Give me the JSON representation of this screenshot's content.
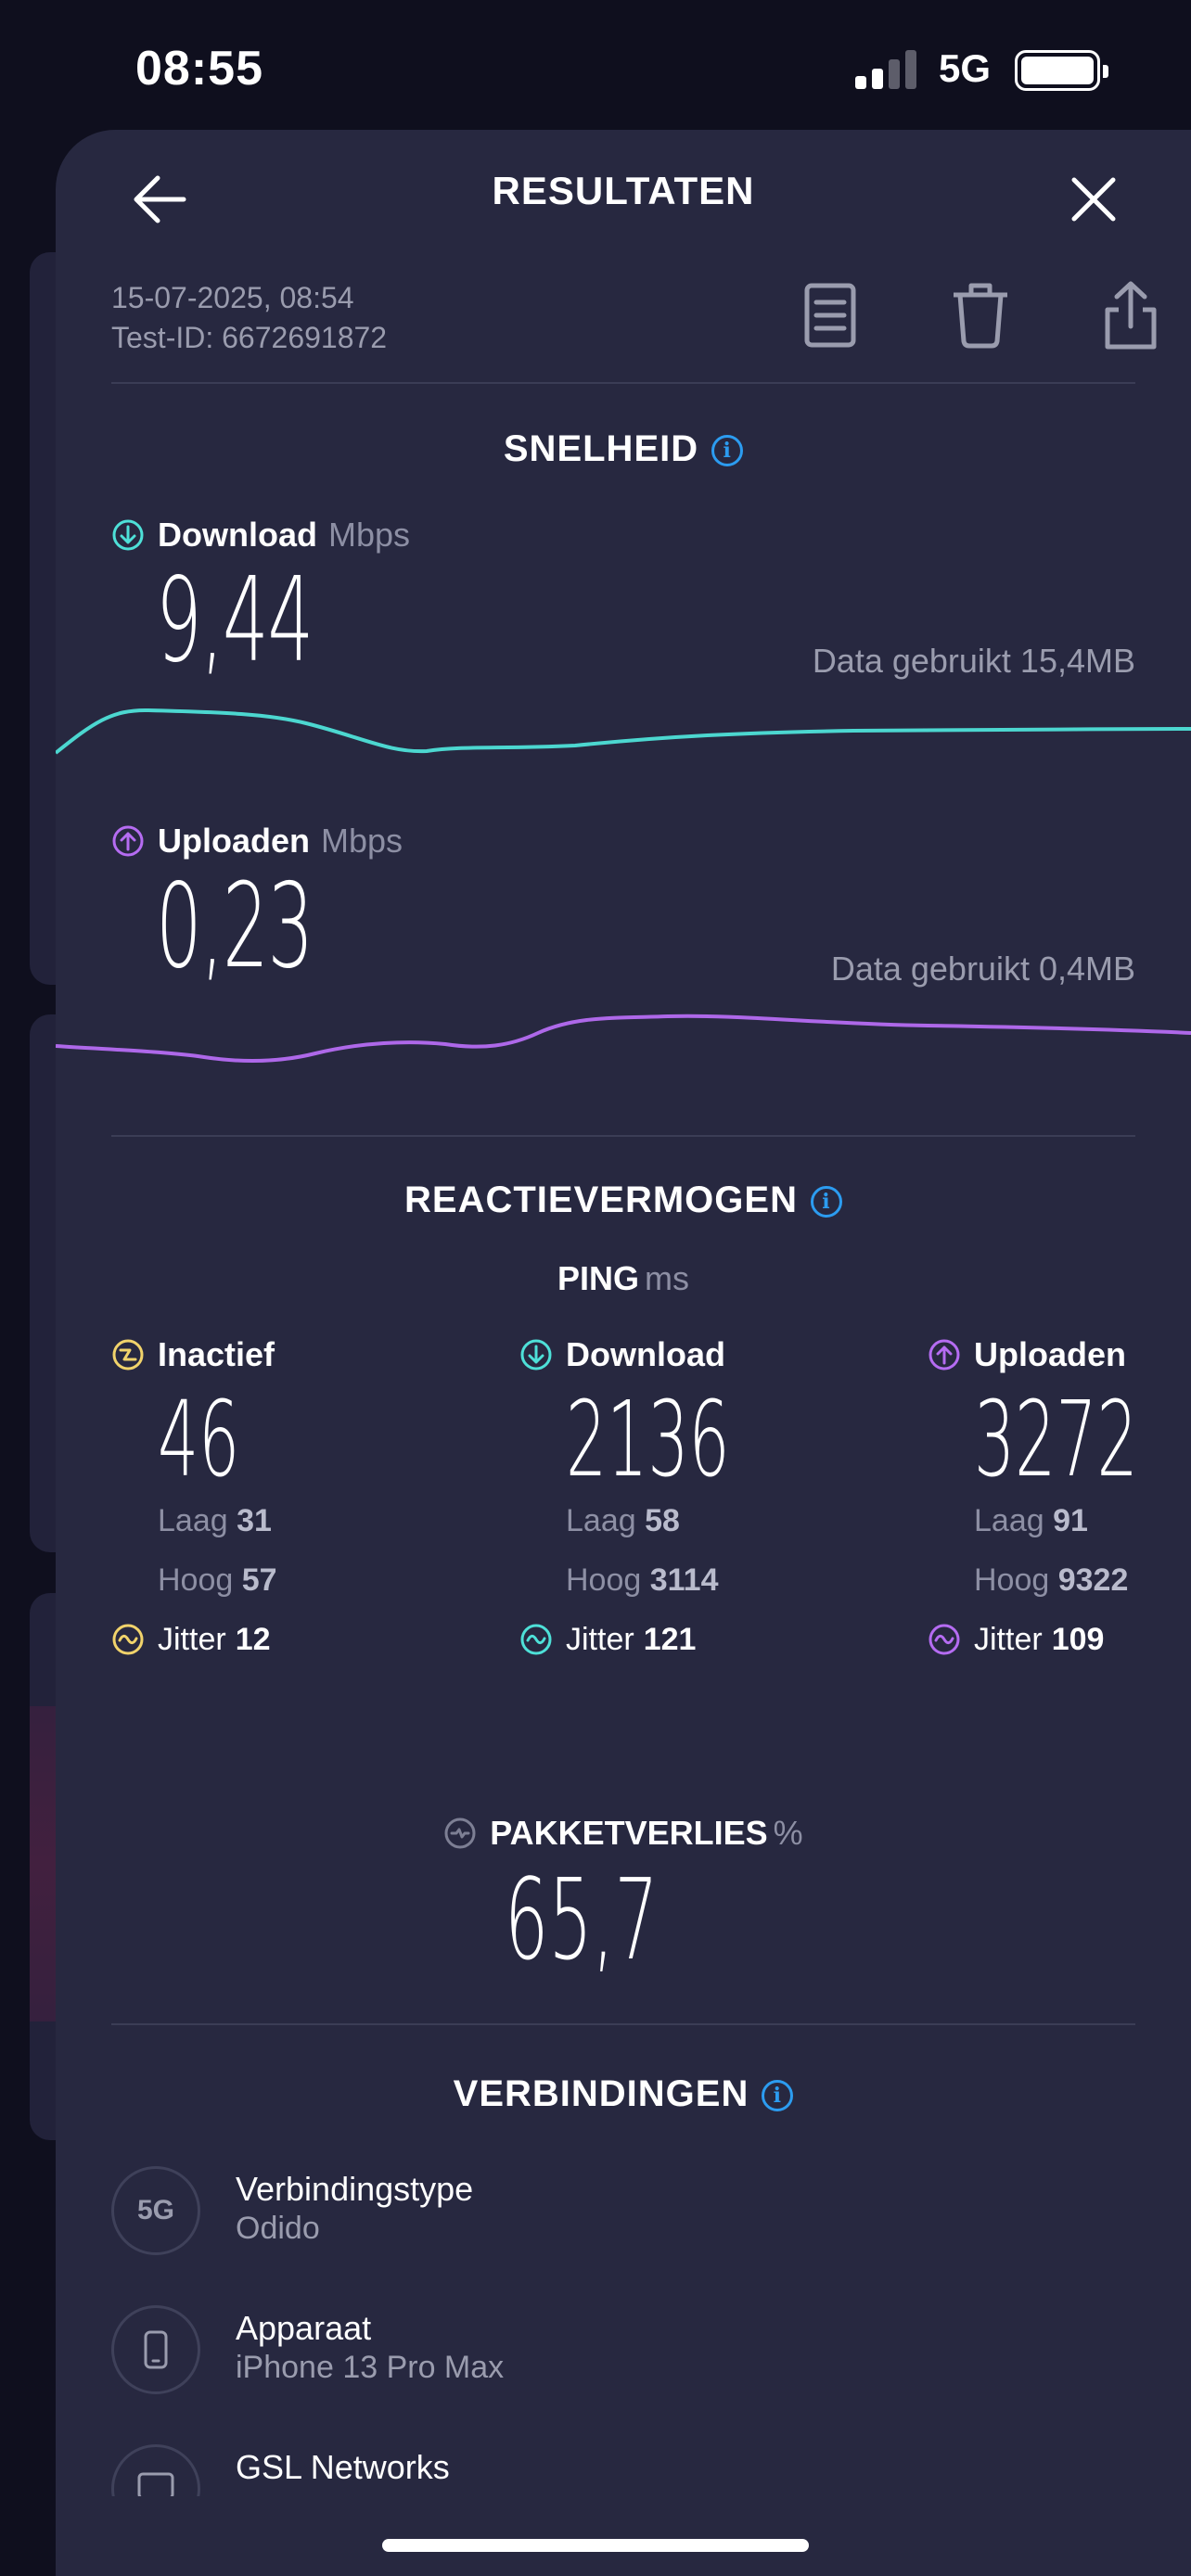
{
  "status_bar": {
    "time": "08:55",
    "network": "5G",
    "signal_bars_active": 2,
    "signal_bars_total": 4,
    "battery_level": 1.0
  },
  "nav": {
    "title": "RESULTATEN",
    "back_icon": "arrow-left-icon",
    "close_icon": "close-icon"
  },
  "meta": {
    "datetime": "15-07-2025, 08:54",
    "test_id": "Test-ID: 6672691872"
  },
  "actions": [
    "document-icon",
    "trash-icon",
    "share-icon"
  ],
  "speed": {
    "title": "SNELHEID",
    "download": {
      "label": "Download",
      "unit": "Mbps",
      "value": "9,44",
      "data_used": "Data gebruikt 15,4MB",
      "color": "#4ee0d8"
    },
    "upload": {
      "label": "Uploaden",
      "unit": "Mbps",
      "value": "0,23",
      "data_used": "Data gebruikt 0,4MB",
      "color": "#b56cf2"
    }
  },
  "responsiveness": {
    "title": "REACTIEVERMOGEN",
    "ping_label": "PING",
    "ping_unit": "ms",
    "columns": [
      {
        "label": "Inactief",
        "value": "46",
        "low_label": "Laag",
        "low": "31",
        "high_label": "Hoog",
        "high": "57",
        "jitter_label": "Jitter",
        "jitter": "12",
        "color": "#f1d36b"
      },
      {
        "label": "Download",
        "value": "2136",
        "low_label": "Laag",
        "low": "58",
        "high_label": "Hoog",
        "high": "3114",
        "jitter_label": "Jitter",
        "jitter": "121",
        "color": "#4ee0d8"
      },
      {
        "label": "Uploaden",
        "value": "3272",
        "low_label": "Laag",
        "low": "91",
        "high_label": "Hoog",
        "high": "9322",
        "jitter_label": "Jitter",
        "jitter": "109",
        "color": "#b56cf2"
      }
    ]
  },
  "packet_loss": {
    "label": "PAKKETVERLIES",
    "unit": "%",
    "value": "65,7"
  },
  "connections": {
    "title": "VERBINDINGEN",
    "items": [
      {
        "title": "Verbindingstype",
        "value": "Odido",
        "icon": "5G"
      },
      {
        "title": "Apparaat",
        "value": "iPhone 13 Pro Max",
        "icon": "phone-icon"
      },
      {
        "title": "GSL Networks",
        "value": "",
        "icon": "server-icon"
      }
    ]
  },
  "colors": {
    "accent_info": "#2c9cf0",
    "sheet_bg": "#272840",
    "page_bg": "#0f0f1e"
  }
}
